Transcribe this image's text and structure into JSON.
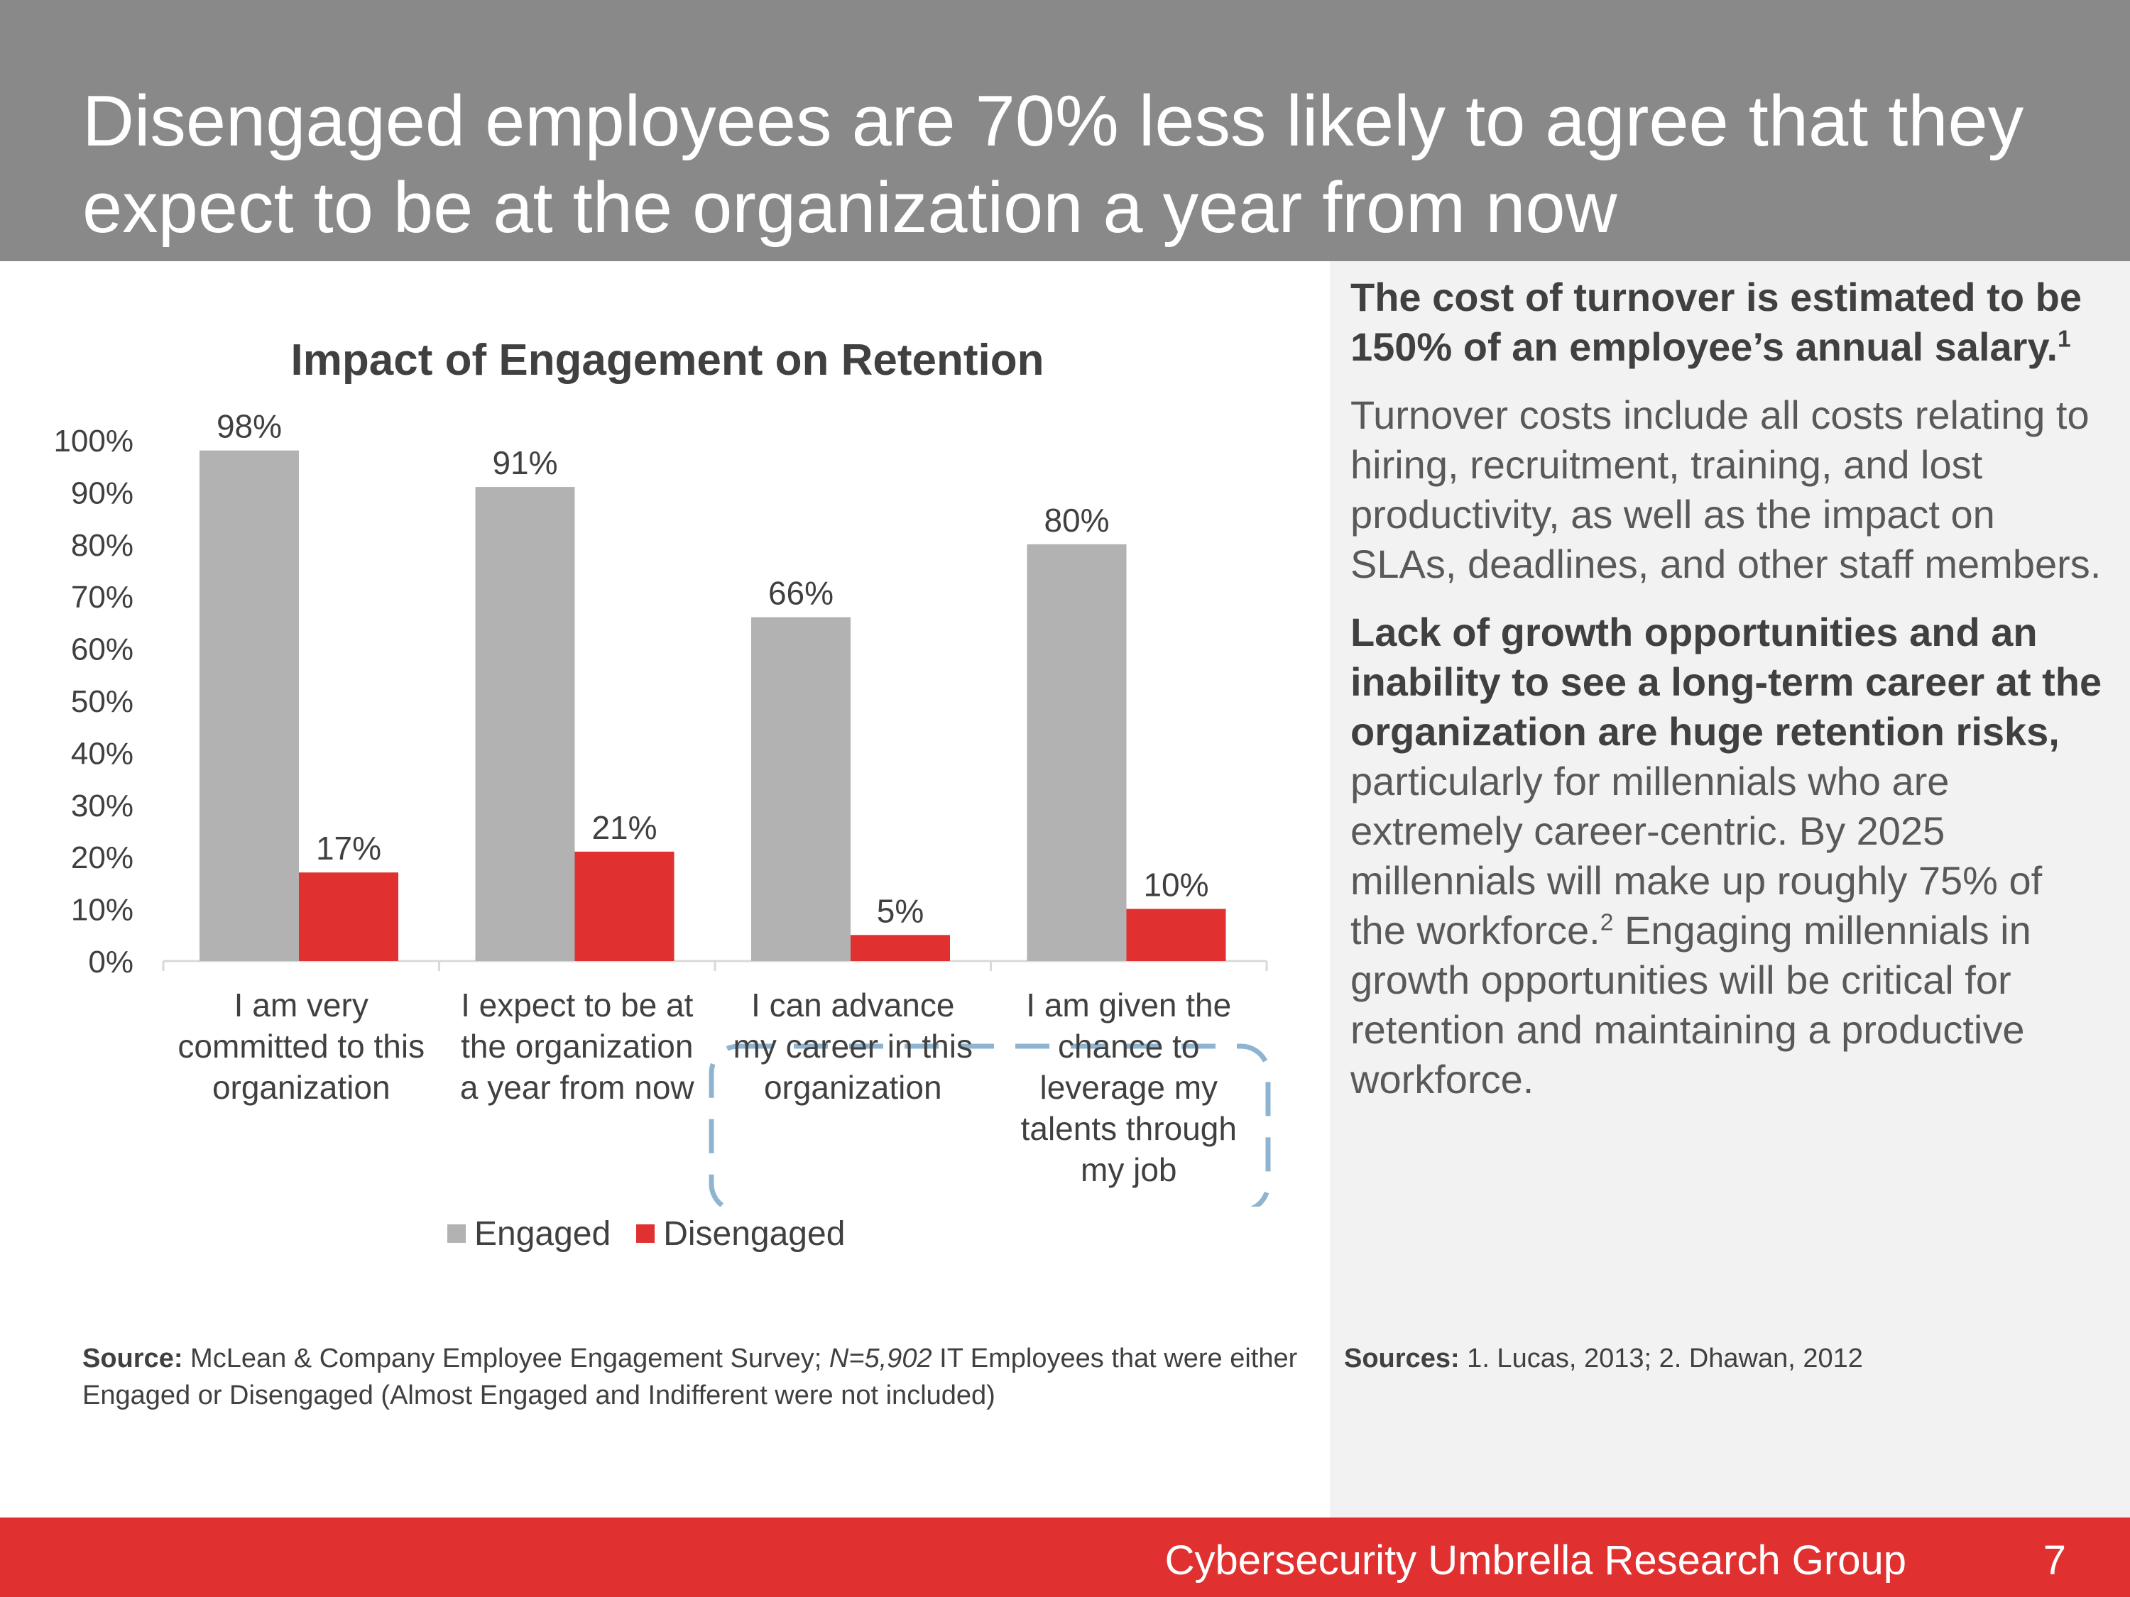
{
  "slide": {
    "title": "Disengaged employees are 70% less likely to agree that they expect to be at the organization a year from now",
    "page_number": "7",
    "footer_org": "Cybersecurity Umbrella Research Group"
  },
  "source_left": {
    "label": "Source:",
    "text_1": " McLean & Company Employee Engagement Survey; ",
    "italic": "N=5,902",
    "text_2": " IT Employees that were either Engaged or Disengaged (Almost Engaged and Indifferent were not included)"
  },
  "right_panel": {
    "p1_bold": "The cost of turnover is estimated to be 150% of an employee’s annual salary.",
    "p1_sup": "1",
    "p2": "Turnover costs include all costs relating to hiring, recruitment, training, and lost productivity, as well as the impact on SLAs, deadlines, and other staff members.",
    "p3_bold": "Lack of growth opportunities and an inability to see a long-term career at the organization are huge retention risks,",
    "p3_text": " particularly for millennials who are extremely career-centric. By 2025 millennials will make up roughly 75% of the workforce.",
    "p3_sup": "2",
    "p3_text2": " Engaging millennials in growth opportunities will be critical for retention and maintaining a productive workforce.",
    "sources_label": "Sources:",
    "sources_text": " 1. Lucas, 2013; 2. Dhawan, 2012"
  },
  "chart_data": {
    "type": "bar",
    "title": "Impact of Engagement on Retention",
    "categories": [
      "I am very committed to this organization",
      "I expect to be at the organization a year from now",
      "I can advance my career in this organization",
      "I am given the chance to leverage my talents through my job"
    ],
    "category_lines": [
      [
        "I am very",
        "committed to this",
        "organization"
      ],
      [
        "I expect to be at",
        "the organization",
        "a year from now"
      ],
      [
        "I can advance",
        "my career in this",
        "organization"
      ],
      [
        "I am given the",
        "chance to",
        "leverage my",
        "talents through",
        "my job"
      ]
    ],
    "series": [
      {
        "name": "Engaged",
        "values": [
          98,
          91,
          66,
          80
        ],
        "labels": [
          "98%",
          "91%",
          "66%",
          "80%"
        ],
        "color": "#b2b2b2"
      },
      {
        "name": "Disengaged",
        "values": [
          17,
          21,
          5,
          10
        ],
        "labels": [
          "17%",
          "21%",
          "5%",
          "10%"
        ],
        "color": "#e03030"
      }
    ],
    "ylim": [
      0,
      100
    ],
    "yticks": [
      "0%",
      "10%",
      "20%",
      "30%",
      "40%",
      "50%",
      "60%",
      "70%",
      "80%",
      "90%",
      "100%"
    ],
    "grid": false,
    "legend_position": "bottom",
    "highlight_color": "#8fb4d0"
  }
}
